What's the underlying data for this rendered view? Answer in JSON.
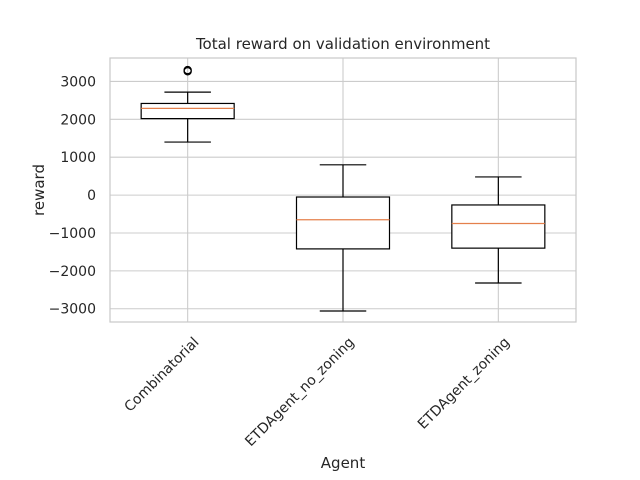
{
  "chart_data": {
    "type": "box",
    "title": "Total reward on validation environment",
    "xlabel": "Agent",
    "ylabel": "reward",
    "ylim": [
      -3350,
      3620
    ],
    "yticks": [
      3000,
      2000,
      1000,
      0,
      -1000,
      -2000,
      -3000
    ],
    "ytick_labels": [
      "3000",
      "2000",
      "1000",
      "0",
      "−1000",
      "−2000",
      "−3000"
    ],
    "grid": true,
    "categories": [
      "Combinatorial",
      "ETDAgent_no_zoning",
      "ETDAgent_zoning"
    ],
    "boxes": [
      {
        "category": "Combinatorial",
        "whisker_low": 1400,
        "q1": 2020,
        "median": 2290,
        "q3": 2420,
        "whisker_high": 2720,
        "outliers": [
          3270,
          3300
        ]
      },
      {
        "category": "ETDAgent_no_zoning",
        "whisker_low": -3060,
        "q1": -1420,
        "median": -650,
        "q3": -50,
        "whisker_high": 800,
        "outliers": []
      },
      {
        "category": "ETDAgent_zoning",
        "whisker_low": -2320,
        "q1": -1400,
        "median": -750,
        "q3": -260,
        "whisker_high": 480,
        "outliers": []
      }
    ],
    "colors": {
      "box": "#000000",
      "median": "#e4804c",
      "grid": "#cccccc",
      "axes": "#c8c8c8"
    }
  }
}
